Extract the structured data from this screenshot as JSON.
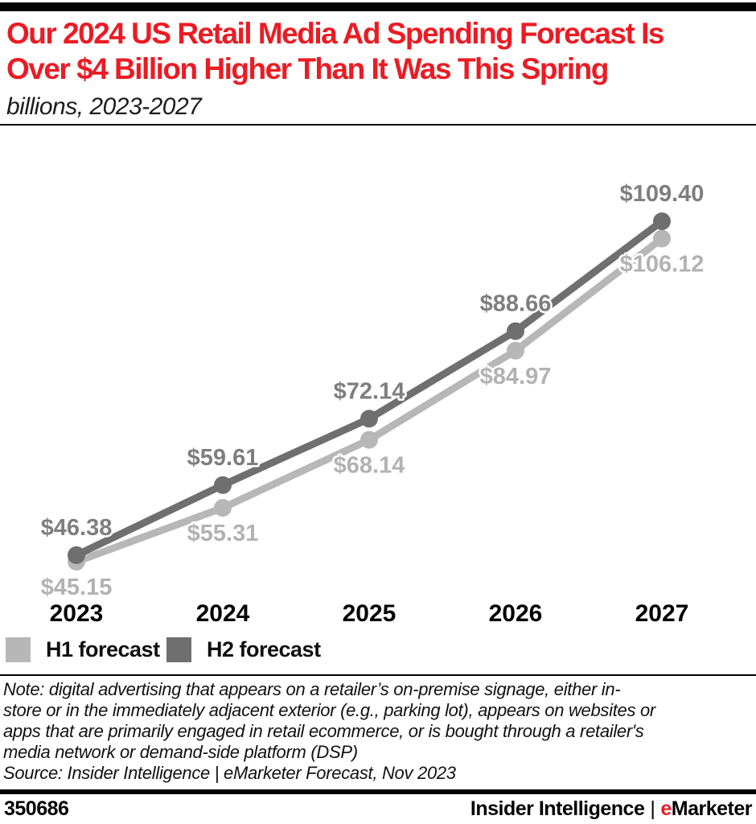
{
  "header": {
    "title_lines": [
      "Our 2024 US Retail Media Ad Spending Forecast Is",
      "Over $4 Billion Higher Than It Was This Spring"
    ],
    "subtitle": "billions, 2023-2027"
  },
  "chart_data": {
    "type": "line",
    "title": "Our 2024 US Retail Media Ad Spending Forecast Is Over $4 Billion Higher Than It Was This Spring",
    "units": "billions, 2023-2027",
    "value_prefix": "$",
    "categories": [
      "2023",
      "2024",
      "2025",
      "2026",
      "2027"
    ],
    "series": [
      {
        "name": "H1 forecast",
        "color": "#b7b7b7",
        "label_color": "#b2b2b2",
        "values": [
          45.15,
          55.31,
          68.14,
          84.97,
          106.12
        ]
      },
      {
        "name": "H2 forecast",
        "color": "#6f6f6f",
        "label_color": "#7e7e7e",
        "values": [
          46.38,
          59.61,
          72.14,
          88.66,
          109.4
        ]
      }
    ],
    "ylim": [
      45,
      110
    ],
    "grid": false,
    "legend_position": "bottom"
  },
  "notes": {
    "note_lines": [
      "Note: digital advertising that appears on a retailer’s on-premise signage, either in-",
      "store or in the immediately adjacent exterior (e.g., parking lot), appears on websites or",
      "apps that are primarily engaged in retail ecommerce, or is bought through a retailer's",
      "media network or demand-side platform (DSP)"
    ],
    "source": "Source: Insider Intelligence | eMarketer Forecast, Nov 2023"
  },
  "footer": {
    "chart_id": "350686",
    "brand_left": "Insider Intelligence",
    "brand_separator": "|",
    "brand_e": "e",
    "brand_rest": "Marketer"
  },
  "colors": {
    "accent_red": "#ec1b23",
    "bar_black": "#000000"
  }
}
